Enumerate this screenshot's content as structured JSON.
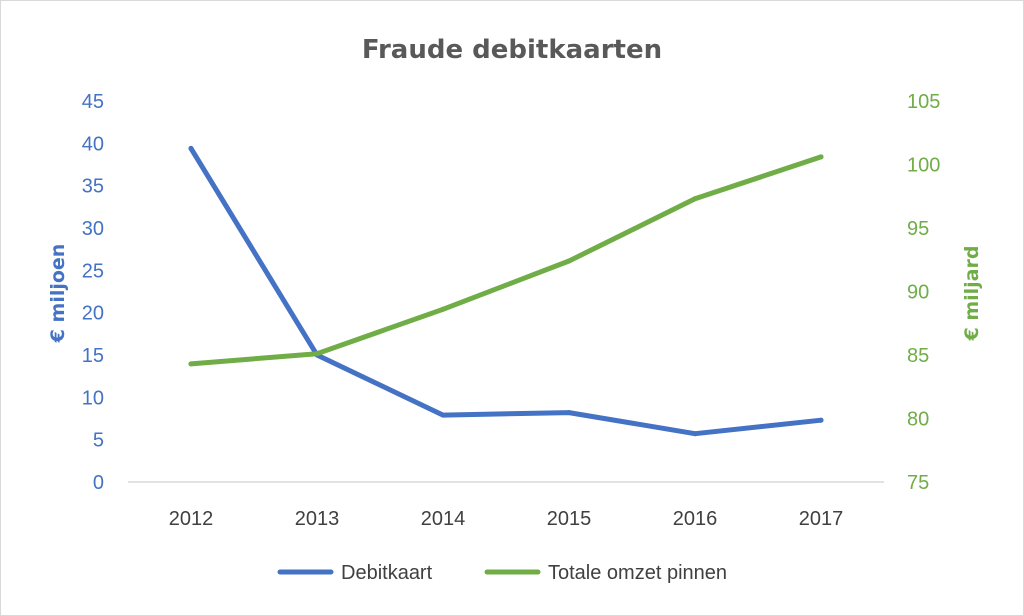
{
  "chart_data": {
    "type": "line",
    "title": "Fraude debitkaarten",
    "categories": [
      "2012",
      "2013",
      "2014",
      "2015",
      "2016",
      "2017"
    ],
    "y_left": {
      "label": "€ miljoen",
      "ylim": [
        0,
        45
      ],
      "ticks": [
        "0",
        "5",
        "10",
        "15",
        "20",
        "25",
        "30",
        "35",
        "40",
        "45"
      ],
      "color": "#4472c4"
    },
    "y_right": {
      "label": "€ miljard",
      "ylim": [
        75,
        105
      ],
      "ticks": [
        "75",
        "80",
        "85",
        "90",
        "95",
        "100",
        "105"
      ],
      "color": "#70ad47"
    },
    "series": [
      {
        "name": "Debitkaart",
        "axis": "left",
        "color": "#4472c4",
        "values": [
          39.4,
          15.0,
          7.9,
          8.2,
          5.7,
          7.3
        ]
      },
      {
        "name": "Totale omzet pinnen",
        "axis": "right",
        "color": "#70ad47",
        "values": [
          84.3,
          85.1,
          88.6,
          92.4,
          97.3,
          100.6
        ]
      }
    ],
    "grid": false,
    "legend_position": "bottom"
  }
}
